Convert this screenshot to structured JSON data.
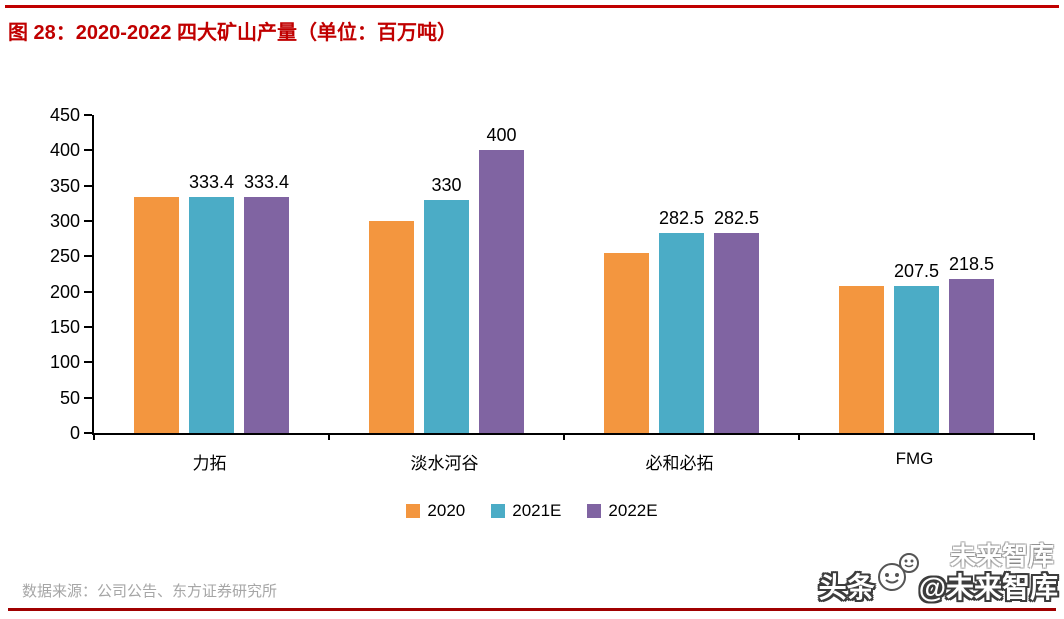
{
  "colors": {
    "accent_red": "#C00000",
    "footer_rule_red": "#A00000",
    "series_2020_orange": "#F3963F",
    "series_2021e_teal": "#4BACC6",
    "series_2022e_purple": "#8064A2",
    "source_text_gray": "#A6A6A6"
  },
  "title": {
    "text": "图 28：2020-2022 四大矿山产量（单位：百万吨）"
  },
  "chart_data": {
    "type": "bar",
    "title": "图 28：2020-2022 四大矿山产量（单位：百万吨）",
    "unit": "百万吨",
    "categories": [
      "力拓",
      "淡水河谷",
      "必和必拓",
      "FMG"
    ],
    "series": [
      {
        "name": "2020",
        "color": "#F3963F",
        "values": [
          333.4,
          300,
          255,
          208
        ],
        "labels_shown": false,
        "labels": [
          "",
          "",
          "",
          ""
        ]
      },
      {
        "name": "2021E",
        "color": "#4BACC6",
        "values": [
          333.4,
          330,
          282.5,
          207.5
        ],
        "labels_shown": true,
        "labels": [
          "333.4",
          "330",
          "282.5",
          "207.5"
        ]
      },
      {
        "name": "2022E",
        "color": "#8064A2",
        "values": [
          333.4,
          400,
          282.5,
          218.5
        ],
        "labels_shown": true,
        "labels": [
          "333.4",
          "400",
          "282.5",
          "218.5"
        ]
      }
    ],
    "ylim": [
      0,
      450
    ],
    "ytick_step": 50,
    "grid": false,
    "legend_position": "bottom"
  },
  "footer": {
    "source_text": "数据来源：公司公告、东方证券研究所"
  },
  "watermark": {
    "prefix": "头条",
    "handle": "@未来智库",
    "ghost_text": "未来智库"
  }
}
